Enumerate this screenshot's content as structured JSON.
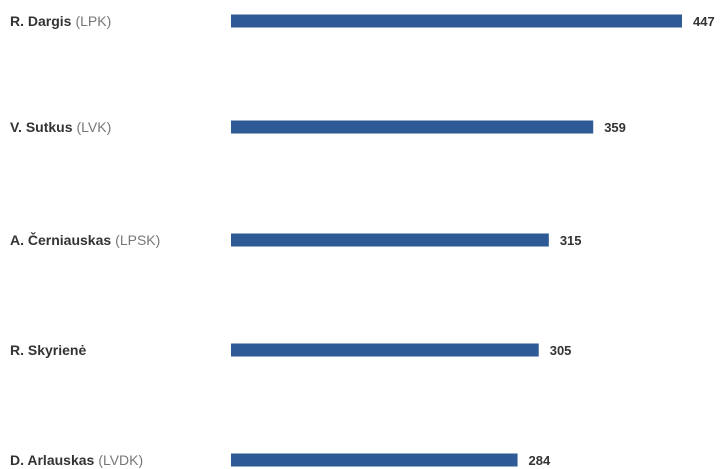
{
  "chart_data": {
    "type": "bar",
    "orientation": "horizontal",
    "title": "",
    "xlabel": "",
    "ylabel": "",
    "xlim": [
      0,
      447
    ],
    "grid": false,
    "legend": "none",
    "categories": [
      {
        "name": "R. Dargis",
        "party": "(LPK)"
      },
      {
        "name": "V. Sutkus",
        "party": "(LVK)"
      },
      {
        "name": "A. Černiauskas",
        "party": "(LPSK)"
      },
      {
        "name": "R. Skyrienė",
        "party": ""
      },
      {
        "name": "D. Arlauskas",
        "party": "(LVDK)"
      }
    ],
    "series": [
      {
        "values": [
          447,
          359,
          315,
          305,
          284
        ],
        "color": "#2e5a95"
      }
    ]
  }
}
